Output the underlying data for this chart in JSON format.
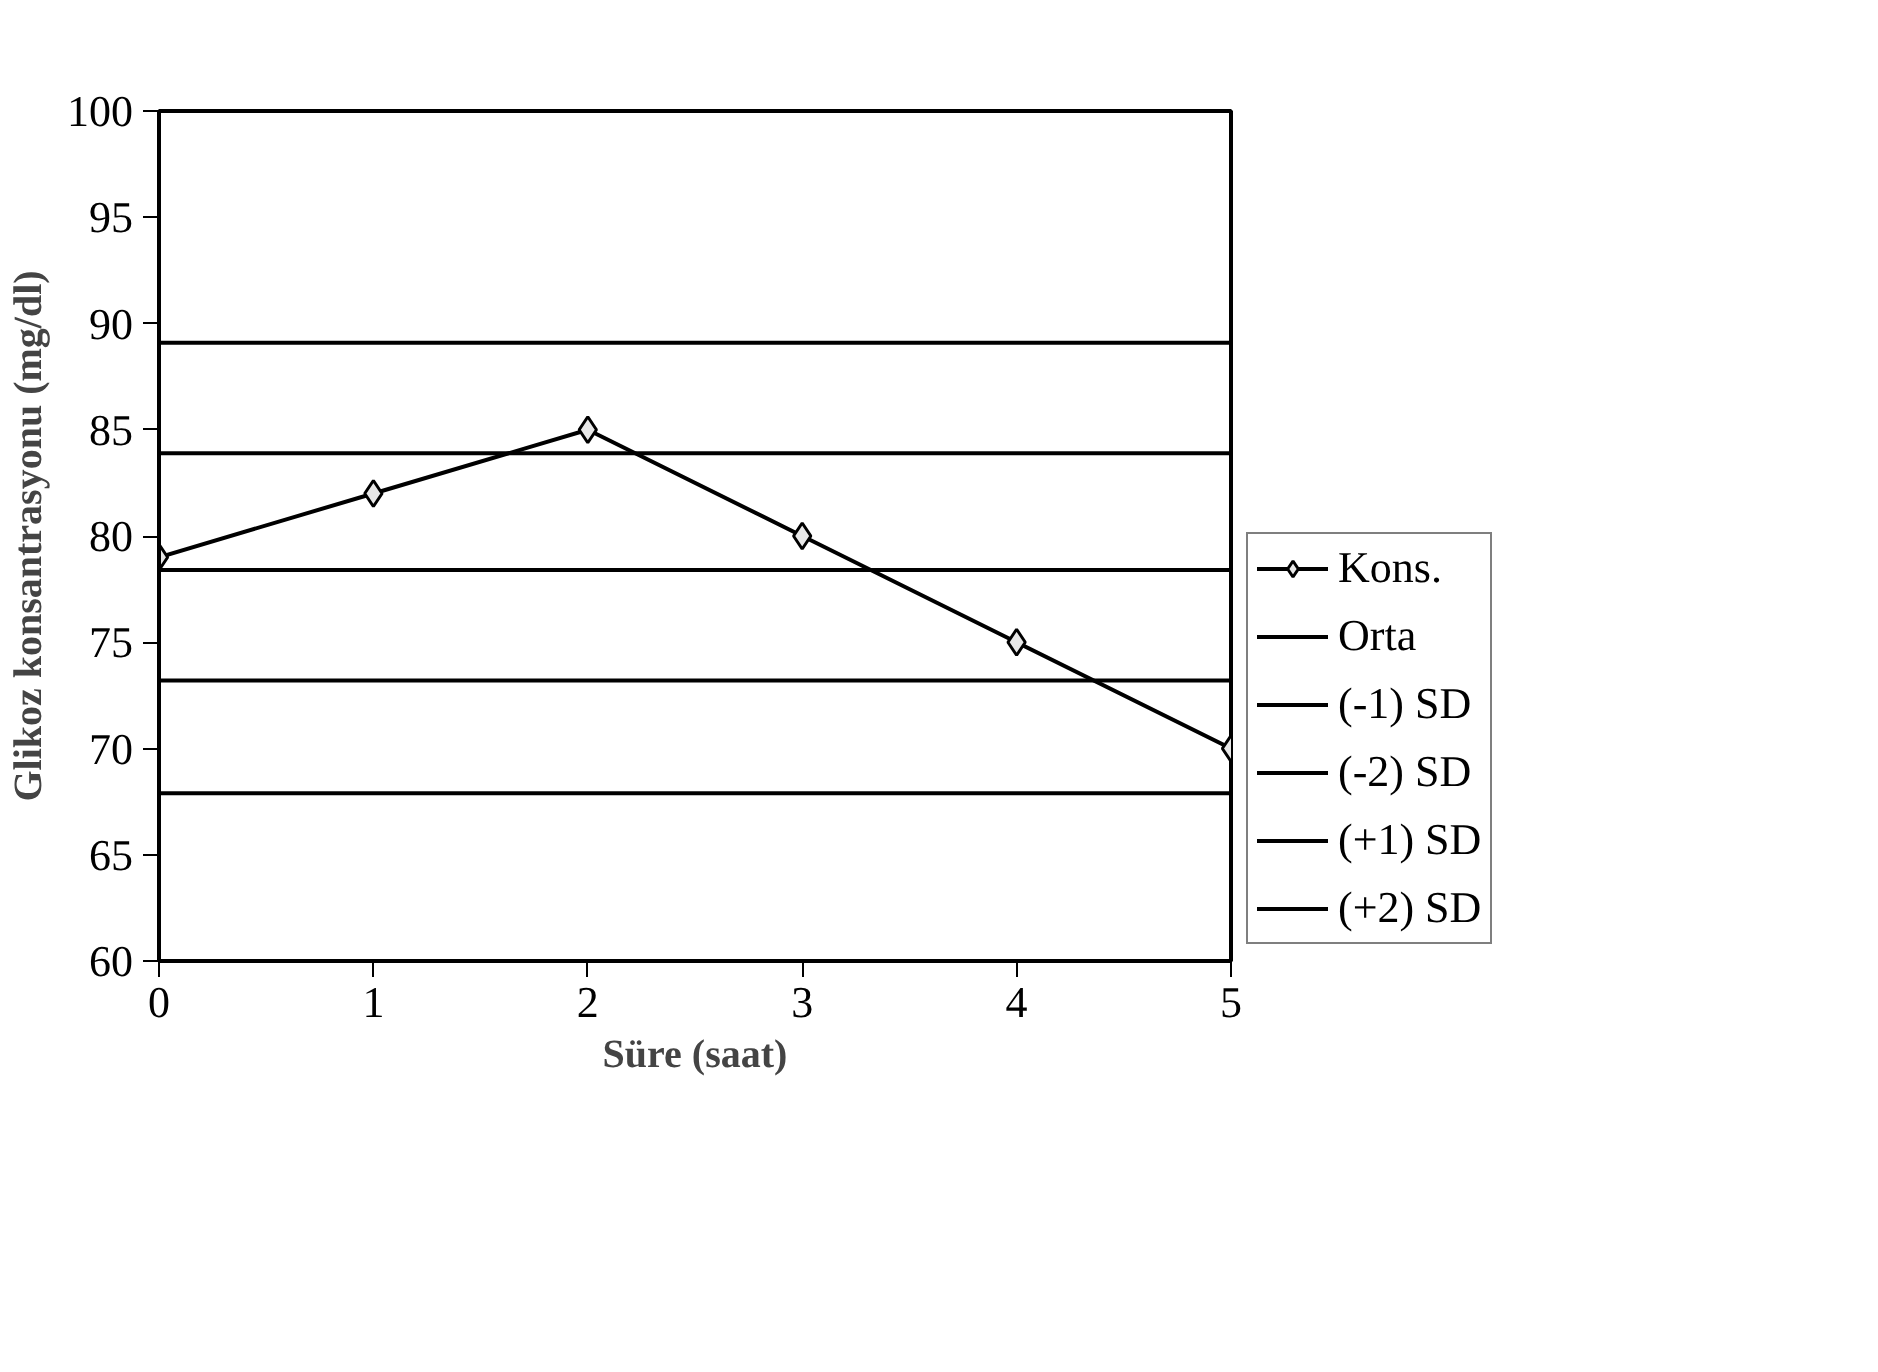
{
  "chart_data": {
    "type": "line",
    "xlabel": "Süre (saat)",
    "ylabel": "Glikoz konsantrasyonu (mg/dl)",
    "x": [
      0,
      1,
      2,
      3,
      4,
      5
    ],
    "xlim": [
      0,
      5
    ],
    "xticks": [
      0,
      1,
      2,
      3,
      4,
      5
    ],
    "ylim": [
      60,
      100
    ],
    "yticks": [
      60,
      65,
      70,
      75,
      80,
      85,
      90,
      95,
      100
    ],
    "grid": false,
    "legend": "right",
    "line_style": "solid",
    "series": [
      {
        "name": "Kons.",
        "color": "#000000",
        "marker": "diamond",
        "values": [
          79,
          82,
          85,
          80,
          75,
          70
        ]
      },
      {
        "name": "Orta",
        "color": "#000000",
        "marker": "none",
        "values": [
          78.4,
          78.4,
          78.4,
          78.4,
          78.4,
          78.4
        ]
      },
      {
        "name": "(-1) SD",
        "color": "#000000",
        "marker": "none",
        "values": [
          73.2,
          73.2,
          73.2,
          73.2,
          73.2,
          73.2
        ]
      },
      {
        "name": "(-2) SD",
        "color": "#000000",
        "marker": "none",
        "values": [
          67.9,
          67.9,
          67.9,
          67.9,
          67.9,
          67.9
        ]
      },
      {
        "name": "(+1) SD",
        "color": "#000000",
        "marker": "none",
        "values": [
          83.9,
          83.9,
          83.9,
          83.9,
          83.9,
          83.9
        ]
      },
      {
        "name": "(+2) SD",
        "color": "#000000",
        "marker": "none",
        "values": [
          89.1,
          89.1,
          89.1,
          89.1,
          89.1,
          89.1
        ]
      }
    ]
  }
}
